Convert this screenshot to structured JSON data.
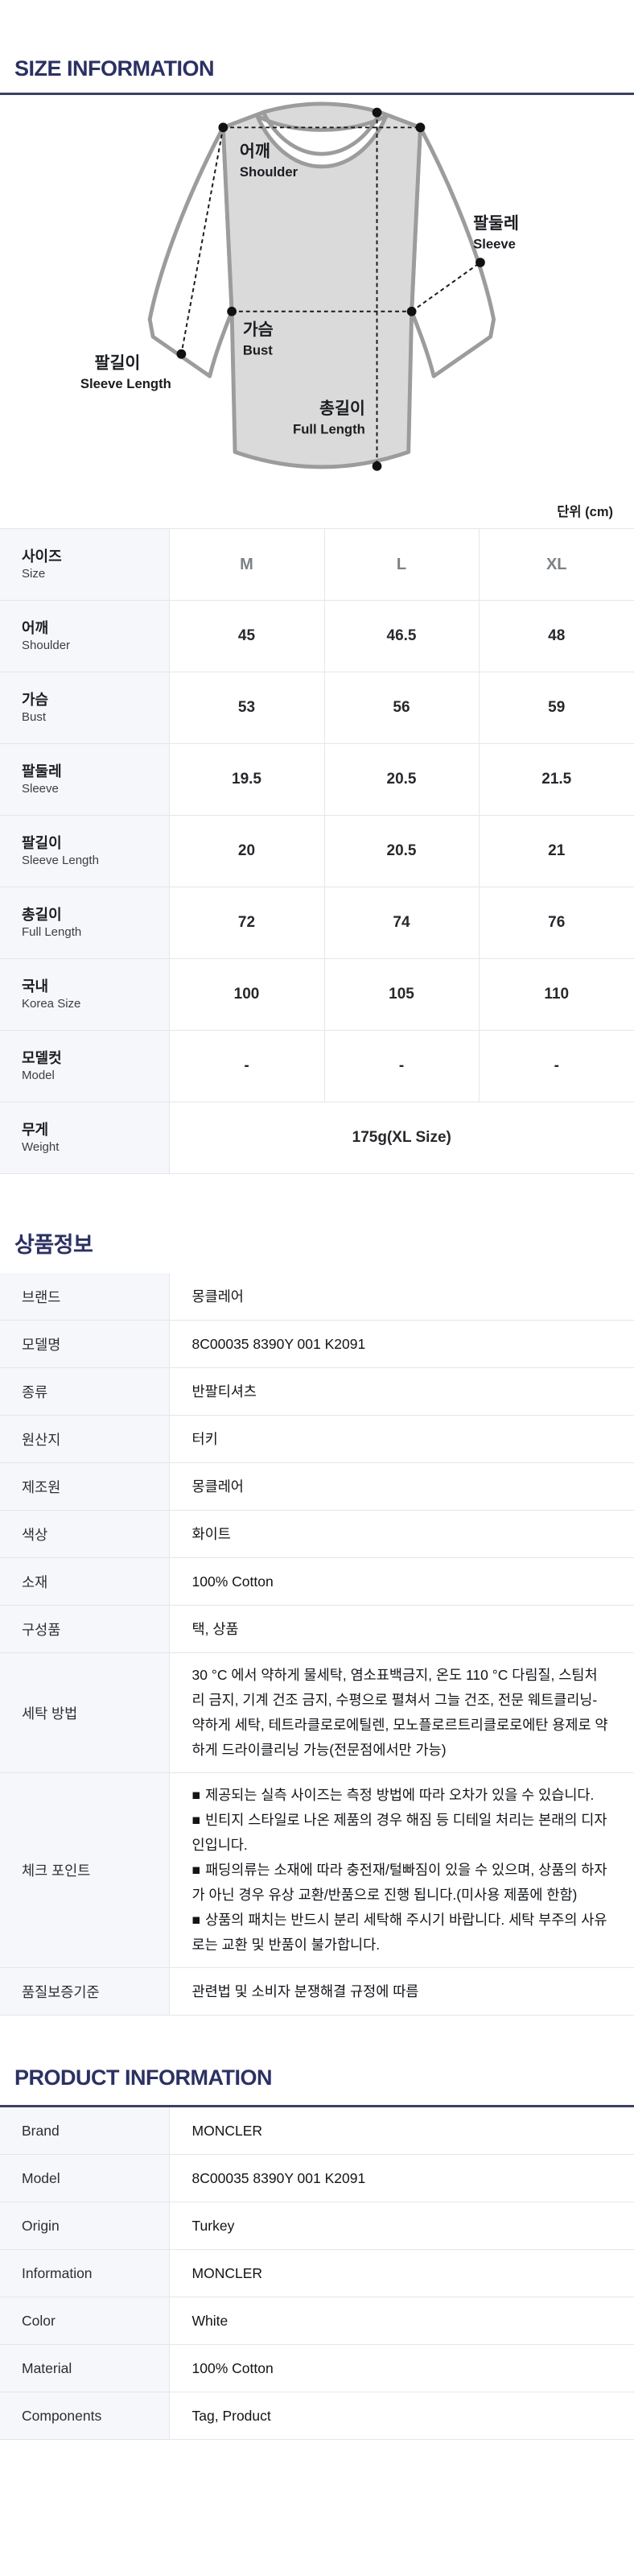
{
  "page": {
    "accent_navy": "#2c3163",
    "divider_navy": "#3b4066",
    "label_bg": "#f6f7fa",
    "border": "#e4e6ea"
  },
  "size_section": {
    "title": "SIZE INFORMATION",
    "unit_label": "단위 (cm)",
    "diagram": {
      "labels": {
        "shoulder_ko": "어깨",
        "shoulder_en": "Shoulder",
        "sleeve_ko": "팔둘레",
        "sleeve_en": "Sleeve",
        "bust_ko": "가슴",
        "bust_en": "Bust",
        "sleeve_length_ko": "팔길이",
        "sleeve_length_en": "Sleeve Length",
        "full_length_ko": "총길이",
        "full_length_en": "Full Length"
      }
    },
    "table": {
      "header": {
        "label_ko": "사이즈",
        "label_en": "Size",
        "columns": [
          "M",
          "L",
          "XL"
        ]
      },
      "rows": [
        {
          "label_ko": "어깨",
          "label_en": "Shoulder",
          "values": [
            "45",
            "46.5",
            "48"
          ]
        },
        {
          "label_ko": "가슴",
          "label_en": "Bust",
          "values": [
            "53",
            "56",
            "59"
          ]
        },
        {
          "label_ko": "팔둘레",
          "label_en": "Sleeve",
          "values": [
            "19.5",
            "20.5",
            "21.5"
          ]
        },
        {
          "label_ko": "팔길이",
          "label_en": "Sleeve Length",
          "values": [
            "20",
            "20.5",
            "21"
          ]
        },
        {
          "label_ko": "총길이",
          "label_en": "Full Length",
          "values": [
            "72",
            "74",
            "76"
          ]
        },
        {
          "label_ko": "국내",
          "label_en": "Korea Size",
          "values": [
            "100",
            "105",
            "110"
          ]
        },
        {
          "label_ko": "모델컷",
          "label_en": "Model",
          "values": [
            "-",
            "-",
            "-"
          ]
        },
        {
          "label_ko": "무게",
          "label_en": "Weight",
          "span_value": "175g(XL Size)"
        }
      ]
    }
  },
  "product_info_ko": {
    "title": "상품정보",
    "bullet_icon": "■",
    "rows": [
      {
        "label": "브랜드",
        "value": "몽클레어"
      },
      {
        "label": "모델명",
        "value": "8C00035 8390Y 001 K2091"
      },
      {
        "label": "종류",
        "value": "반팔티셔츠"
      },
      {
        "label": "원산지",
        "value": "터키"
      },
      {
        "label": "제조원",
        "value": "몽클레어"
      },
      {
        "label": "색상",
        "value": "화이트"
      },
      {
        "label": "소재",
        "value": "100% Cotton"
      },
      {
        "label": "구성품",
        "value": "택, 상품"
      },
      {
        "label": "세탁 방법",
        "value": "30 °C 에서 약하게 물세탁, 염소표백금지, 온도 110 °C 다림질, 스팀처리 금지, 기계 건조 금지, 수평으로 펼쳐서 그늘 건조, 전문 웨트클리닝-약하게 세탁, 테트라클로로에틸렌, 모노플로르트리클로로에탄 용제로 약하게 드라이클리닝 가능(전문점에서만 가능)"
      },
      {
        "label": "체크 포인트",
        "bullets": [
          "제공되는 실측 사이즈는 측정 방법에 따라 오차가 있을 수 있습니다.",
          "빈티지 스타일로 나온 제품의 경우 해짐 등 디테일 처리는 본래의 디자인입니다.",
          "패딩의류는 소재에 따라 충전재/털빠짐이 있을 수 있으며, 상품의 하자가 아닌 경우 유상 교환/반품으로 진행 됩니다.(미사용 제품에 한함)",
          "상품의 패치는 반드시 분리 세탁해 주시기 바랍니다. 세탁 부주의 사유로는 교환 및 반품이 불가합니다."
        ]
      },
      {
        "label": "품질보증기준",
        "value": "관련법 및 소비자 분쟁해결 규정에 따름"
      }
    ]
  },
  "product_info_en": {
    "title": "PRODUCT INFORMATION",
    "rows": [
      {
        "label": "Brand",
        "value": "MONCLER"
      },
      {
        "label": "Model",
        "value": "8C00035 8390Y 001 K2091"
      },
      {
        "label": "Origin",
        "value": "Turkey"
      },
      {
        "label": "Information",
        "value": "MONCLER"
      },
      {
        "label": "Color",
        "value": "White"
      },
      {
        "label": "Material",
        "value": "100% Cotton"
      },
      {
        "label": "Components",
        "value": "Tag, Product"
      }
    ]
  }
}
